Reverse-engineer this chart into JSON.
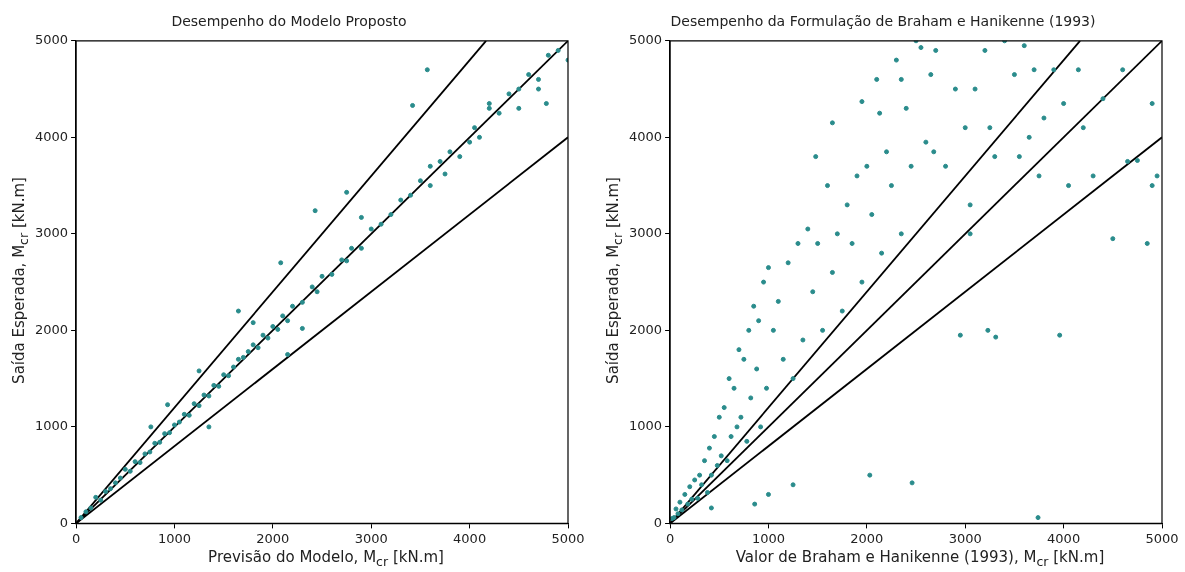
{
  "chart_data": [
    {
      "type": "scatter",
      "title": "Desempenho do Modelo Proposto",
      "xlabel": "Previsão do Modelo, M$_{cr}$ [kN.m]",
      "ylabel": "Saída Esperada, M$_{cr}$ [kN.m]",
      "xlim": [
        0,
        5000
      ],
      "ylim": [
        0,
        5000
      ],
      "xticks": [
        0,
        1000,
        2000,
        3000,
        4000,
        5000
      ],
      "yticks": [
        0,
        1000,
        2000,
        3000,
        4000,
        5000
      ],
      "grid": false,
      "legend": false,
      "marker": "circle",
      "series": [
        {
          "color": "#2a8c8c",
          "x": [
            50,
            100,
            150,
            200,
            250,
            300,
            350,
            400,
            450,
            500,
            550,
            600,
            650,
            700,
            750,
            800,
            850,
            900,
            950,
            1000,
            1050,
            1100,
            1150,
            1200,
            1250,
            1300,
            1350,
            1400,
            1450,
            1500,
            1550,
            1600,
            1650,
            1700,
            1750,
            1800,
            1850,
            1900,
            1950,
            2000,
            2050,
            2100,
            2150,
            2200,
            2300,
            2400,
            2450,
            2500,
            2600,
            2700,
            2750,
            2800,
            2900,
            3000,
            3100,
            3200,
            3300,
            3400,
            3500,
            3600,
            3700,
            3750,
            3800,
            3900,
            4000,
            4050,
            4100,
            4200,
            4300,
            4400,
            4500,
            4600,
            4700,
            4800,
            4900,
            5000,
            1350,
            2150,
            3570,
            3420,
            2430,
            2080,
            1650,
            930,
            2750,
            4780,
            4700,
            760,
            1250,
            1800,
            2300,
            2900,
            3600,
            4200,
            4500
          ],
          "values": [
            60,
            120,
            160,
            270,
            240,
            330,
            360,
            420,
            470,
            560,
            540,
            640,
            630,
            720,
            740,
            830,
            840,
            930,
            940,
            1020,
            1050,
            1130,
            1120,
            1240,
            1220,
            1330,
            1320,
            1430,
            1420,
            1540,
            1530,
            1620,
            1700,
            1720,
            1780,
            1850,
            1820,
            1950,
            1920,
            2040,
            2010,
            2150,
            2100,
            2250,
            2290,
            2450,
            2400,
            2560,
            2580,
            2730,
            2720,
            2850,
            2850,
            3050,
            3100,
            3200,
            3350,
            3400,
            3550,
            3700,
            3750,
            3620,
            3850,
            3800,
            3950,
            4100,
            4000,
            4300,
            4250,
            4450,
            4500,
            4650,
            4600,
            4850,
            4900,
            4800,
            1000,
            1750,
            4700,
            4330,
            3240,
            2700,
            2200,
            1230,
            3430,
            4350,
            4500,
            1000,
            1580,
            2080,
            2020,
            3170,
            3500,
            4350,
            4300
          ]
        },
        {
          "type": "line",
          "marker": "none",
          "color": "#000000",
          "x": [
            0,
            4167
          ],
          "values": [
            0,
            5000
          ]
        },
        {
          "type": "line",
          "marker": "none",
          "color": "#000000",
          "x": [
            0,
            5000
          ],
          "values": [
            0,
            5000
          ]
        },
        {
          "type": "line",
          "marker": "none",
          "color": "#000000",
          "x": [
            0,
            5000
          ],
          "values": [
            0,
            4000
          ]
        }
      ]
    },
    {
      "type": "scatter",
      "title": "Desempenho da Formulação de Braham e Hanikenne (1993)",
      "xlabel": "Valor de Braham e Hanikenne (1993), M$_{cr}$ [kN.m]",
      "ylabel": "Saída Esperada, M$_{cr}$ [kN.m]",
      "xlim": [
        0,
        5000
      ],
      "ylim": [
        0,
        5000
      ],
      "xticks": [
        0,
        1000,
        2000,
        3000,
        4000,
        5000
      ],
      "yticks": [
        0,
        1000,
        2000,
        3000,
        4000,
        5000
      ],
      "grid": false,
      "legend": false,
      "marker": "circle",
      "series": [
        {
          "color": "#2a8c8c",
          "x": [
            20,
            40,
            60,
            80,
            100,
            120,
            150,
            180,
            200,
            220,
            250,
            280,
            300,
            320,
            350,
            380,
            400,
            420,
            450,
            480,
            500,
            520,
            550,
            580,
            600,
            620,
            650,
            680,
            700,
            720,
            750,
            780,
            800,
            820,
            850,
            880,
            900,
            920,
            950,
            980,
            1000,
            1050,
            1100,
            1150,
            1200,
            1250,
            1300,
            1350,
            1400,
            1450,
            1500,
            1550,
            1600,
            1650,
            1700,
            1750,
            1800,
            1850,
            1900,
            1950,
            2000,
            2050,
            2100,
            2150,
            2200,
            2250,
            2300,
            2350,
            2400,
            2450,
            2500,
            2600,
            2650,
            2700,
            2800,
            2900,
            3000,
            3050,
            3100,
            3200,
            3250,
            3300,
            3400,
            3500,
            3550,
            3600,
            3650,
            3700,
            3750,
            3800,
            3900,
            4000,
            4050,
            4150,
            4200,
            4300,
            4400,
            4500,
            4600,
            4650,
            4750,
            4850,
            4900,
            4950,
            1480,
            1650,
            1950,
            2130,
            2350,
            2680,
            2950,
            3050,
            3230,
            3310,
            2460,
            2030,
            1250,
            1000,
            860,
            420,
            3740,
            3960,
            4900,
            2550
          ],
          "values": [
            50,
            60,
            150,
            100,
            220,
            140,
            300,
            200,
            380,
            250,
            450,
            260,
            500,
            400,
            650,
            320,
            780,
            500,
            900,
            600,
            1100,
            700,
            1200,
            650,
            1500,
            900,
            1400,
            1000,
            1800,
            1100,
            1700,
            850,
            2000,
            1300,
            2250,
            1600,
            2100,
            1000,
            2500,
            1400,
            2650,
            2000,
            2300,
            1700,
            2700,
            1500,
            2900,
            1900,
            3050,
            2400,
            2900,
            2000,
            3500,
            2600,
            3000,
            2200,
            3300,
            2900,
            3600,
            2500,
            3700,
            3200,
            4600,
            2800,
            3850,
            3500,
            4800,
            3000,
            4300,
            3700,
            5000,
            3950,
            4650,
            4900,
            3700,
            4500,
            4100,
            3300,
            4500,
            4900,
            4100,
            3800,
            5000,
            4650,
            3800,
            4950,
            4000,
            4700,
            3600,
            4200,
            4700,
            4350,
            3500,
            4700,
            4100,
            3600,
            4400,
            2950,
            4700,
            3750,
            3760,
            2900,
            4350,
            3600,
            3800,
            4150,
            4370,
            4250,
            4600,
            3850,
            1950,
            3000,
            2000,
            1930,
            420,
            500,
            400,
            300,
            200,
            160,
            60,
            1950,
            3500,
            4930
          ]
        },
        {
          "type": "line",
          "marker": "none",
          "color": "#000000",
          "x": [
            0,
            4167
          ],
          "values": [
            0,
            5000
          ]
        },
        {
          "type": "line",
          "marker": "none",
          "color": "#000000",
          "x": [
            0,
            5000
          ],
          "values": [
            0,
            5000
          ]
        },
        {
          "type": "line",
          "marker": "none",
          "color": "#000000",
          "x": [
            0,
            5000
          ],
          "values": [
            0,
            4000
          ]
        }
      ]
    }
  ]
}
